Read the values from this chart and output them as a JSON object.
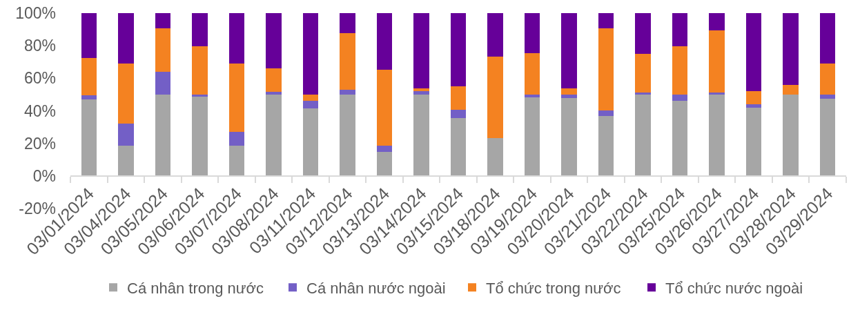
{
  "chart_data": {
    "type": "bar",
    "stacked": true,
    "categories": [
      "03/01/2024",
      "03/04/2024",
      "03/05/2024",
      "03/06/2024",
      "03/07/2024",
      "03/08/2024",
      "03/11/2024",
      "03/12/2024",
      "03/13/2024",
      "03/14/2024",
      "03/15/2024",
      "03/18/2024",
      "03/19/2024",
      "03/20/2024",
      "03/21/2024",
      "03/22/2024",
      "03/25/2024",
      "03/26/2024",
      "03/27/2024",
      "03/28/2024",
      "03/29/2024"
    ],
    "series": [
      {
        "name": "Cá nhân trong nước",
        "color": "#a6a6a6",
        "values": [
          47.0,
          18.8,
          50.0,
          48.6,
          18.8,
          50.0,
          41.5,
          50.0,
          14.8,
          50.0,
          35.7,
          23.4,
          48.1,
          47.7,
          37.0,
          50.0,
          46.0,
          50.0,
          42.0,
          50.0,
          47.4
        ]
      },
      {
        "name": "Cá nhân nước ngoài",
        "color": "#735fc6",
        "values": [
          2.7,
          13.5,
          14.0,
          1.4,
          8.4,
          1.7,
          4.7,
          3.0,
          3.7,
          2.1,
          5.0,
          0,
          1.9,
          2.3,
          3.4,
          1.1,
          4.0,
          1.4,
          2.1,
          0,
          2.6
        ]
      },
      {
        "name": "Tổ chức trong nước",
        "color": "#f48221",
        "values": [
          22.7,
          36.7,
          26.7,
          29.6,
          42.0,
          14.5,
          3.7,
          34.9,
          46.6,
          1.5,
          14.4,
          50.0,
          25.4,
          3.6,
          50.1,
          23.7,
          29.7,
          37.8,
          7.8,
          5.7,
          19.1
        ]
      },
      {
        "name": "Tổ chức nước ngoài",
        "color": "#660099",
        "values": [
          27.6,
          31.0,
          9.3,
          20.4,
          30.8,
          33.8,
          50.1,
          12.1,
          34.9,
          46.4,
          44.9,
          26.6,
          24.6,
          46.4,
          9.5,
          25.2,
          20.3,
          10.8,
          48.1,
          44.3,
          30.9
        ]
      }
    ],
    "ylim": [
      -20,
      100
    ],
    "yticks": [
      {
        "value": -20,
        "label": "-20%"
      },
      {
        "value": 0,
        "label": "0%"
      },
      {
        "value": 20,
        "label": "20%"
      },
      {
        "value": 40,
        "label": "40%"
      },
      {
        "value": 60,
        "label": "60%"
      },
      {
        "value": 80,
        "label": "80%"
      },
      {
        "value": 100,
        "label": "100%"
      }
    ],
    "grid": false,
    "legend": "bottom"
  }
}
